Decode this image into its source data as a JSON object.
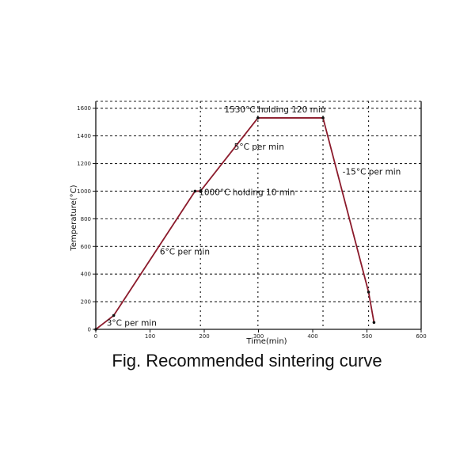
{
  "caption": "Fig. Recommended sintering curve",
  "colors": {
    "curve": "#8b1a2b",
    "grid": "#222222",
    "axis": "#111111",
    "text": "#111111"
  },
  "chart_data": {
    "type": "line",
    "title": "",
    "xlabel": "Time(min)",
    "ylabel": "Temperature(°C)",
    "xlim": [
      0,
      600
    ],
    "ylim": [
      0,
      1650
    ],
    "xticks": [
      0,
      100,
      200,
      300,
      400,
      500,
      600
    ],
    "xtick_labels": [
      "0",
      "100",
      "200",
      "300",
      "400",
      "500",
      "600"
    ],
    "yticks": [
      0,
      200,
      400,
      600,
      800,
      1000,
      1200,
      1400,
      1600
    ],
    "ytick_labels": [
      "0",
      "200",
      "400",
      "600",
      "800",
      "1000",
      "1200",
      "1400",
      "1600"
    ],
    "grid": true,
    "grid_style": "dashed",
    "series": [
      {
        "x": [
          0,
          33,
          183,
          193,
          299,
          419,
          503,
          513
        ],
        "y": [
          0,
          100,
          1000,
          1000,
          1530,
          1530,
          270,
          50
        ]
      }
    ],
    "vertical_markers_x": [
      193,
      299,
      419,
      503
    ],
    "annotations": [
      {
        "text": "3°C per min",
        "x": 20,
        "y": 25
      },
      {
        "text": "6°C per min",
        "x": 118,
        "y": 540
      },
      {
        "text": "1000°C  holding 10 min",
        "x": 190,
        "y": 970
      },
      {
        "text": "5°C per min",
        "x": 255,
        "y": 1300
      },
      {
        "text": "1530°C  holding 120 min",
        "x": 237,
        "y": 1570
      },
      {
        "text": "-15°C per min",
        "x": 455,
        "y": 1120
      }
    ]
  }
}
